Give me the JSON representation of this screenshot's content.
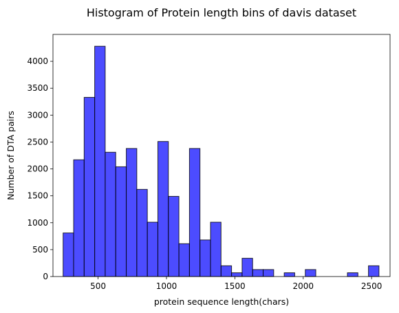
{
  "chart_data": {
    "type": "bar",
    "title": "Histogram of Protein length bins of davis dataset",
    "xlabel": "protein sequence length(chars)",
    "ylabel": "Number of DTA pairs",
    "xlim": [
      170,
      2635
    ],
    "ylim": [
      0,
      4500
    ],
    "x_ticks": [
      500,
      1000,
      1500,
      2000,
      2500
    ],
    "y_ticks": [
      0,
      500,
      1000,
      1500,
      2000,
      2500,
      3000,
      3500,
      4000
    ],
    "bin_edges": [
      244,
      321,
      398,
      475,
      552,
      629,
      706,
      783,
      860,
      937,
      1014,
      1091,
      1168,
      1245,
      1322,
      1399,
      1476,
      1553,
      1630,
      1707,
      1784,
      1861,
      1938,
      2015,
      2092,
      2169,
      2246,
      2323,
      2400,
      2477,
      2554
    ],
    "values": [
      810,
      2170,
      3330,
      4280,
      2310,
      2040,
      2380,
      1620,
      1010,
      2510,
      1490,
      610,
      2380,
      680,
      1010,
      200,
      70,
      340,
      130,
      130,
      0,
      70,
      0,
      130,
      0,
      0,
      0,
      70,
      0,
      200
    ],
    "bar_color": "#0000ff",
    "bar_opacity": 0.7,
    "edge_color": "#000000",
    "grid": false
  }
}
